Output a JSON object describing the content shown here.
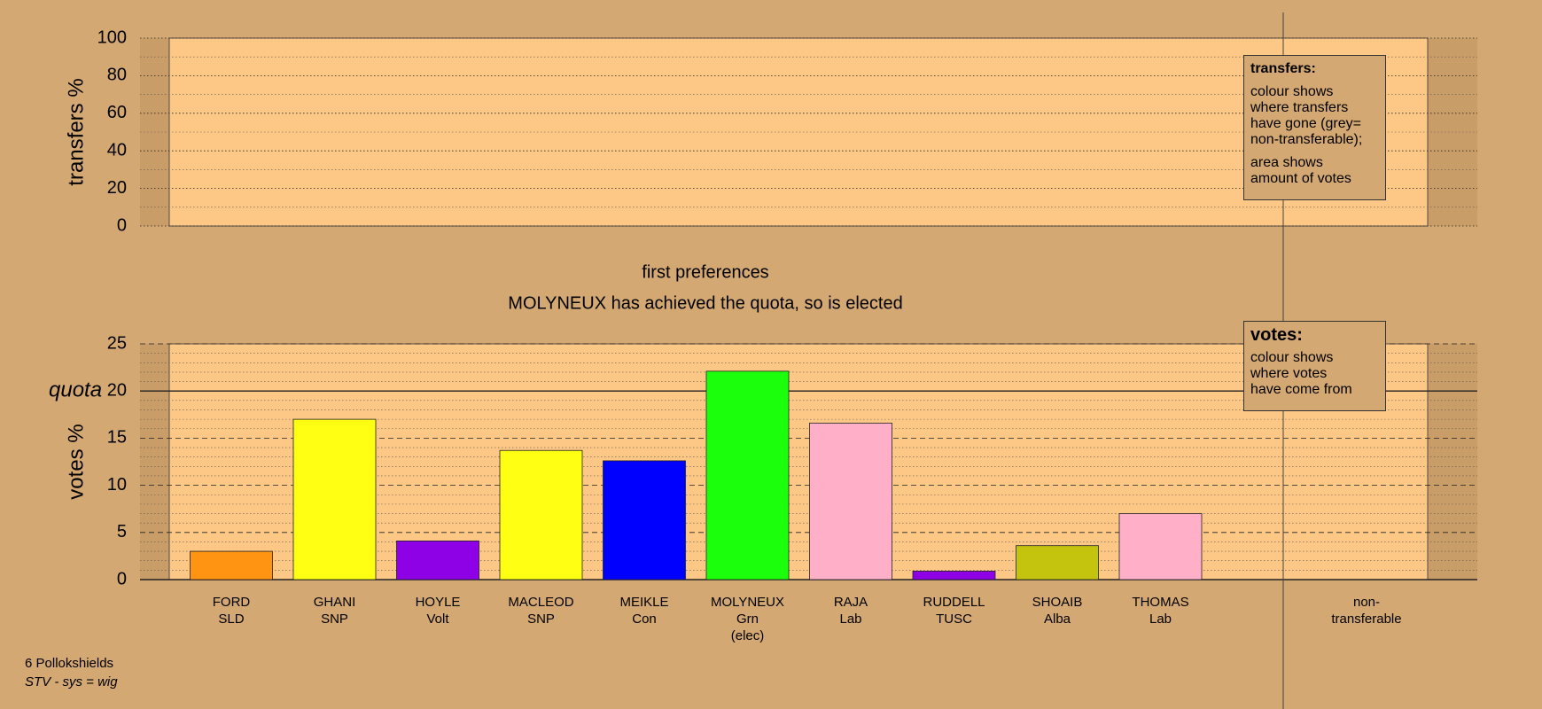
{
  "footer": {
    "ward": "6 Pollokshields",
    "system": "STV - sys = wig"
  },
  "chart_data": [
    {
      "type": "bar",
      "ylabel": "transfers %",
      "ylim": [
        0,
        100
      ],
      "yticks": [
        0,
        20,
        40,
        60,
        80,
        100
      ],
      "values": [],
      "note": {
        "title": "transfers:",
        "paragraphs": [
          "colour shows\nwhere transfers\nhave gone (grey=\nnon-transferable);",
          "area shows\namount of votes"
        ]
      }
    },
    {
      "type": "bar",
      "title": "first preferences",
      "subtitle": "MOLYNEUX has achieved the quota, so is elected",
      "ylabel": "votes %",
      "ylim": [
        0,
        25
      ],
      "yticks": [
        0,
        5,
        10,
        15,
        20,
        25
      ],
      "quota": {
        "value": 20,
        "label": "quota"
      },
      "categories": [
        "FORD\nSLD",
        "GHANI\nSNP",
        "HOYLE\nVolt",
        "MACLEOD\nSNP",
        "MEIKLE\nCon",
        "MOLYNEUX\nGrn\n(elec)",
        "RAJA\nLab",
        "RUDDELL\nTUSC",
        "SHOAIB\nAlba",
        "THOMAS\nLab",
        "non-\ntransferable"
      ],
      "values": [
        3.0,
        17.0,
        4.1,
        13.7,
        12.6,
        22.1,
        16.6,
        0.9,
        3.6,
        7.0,
        null
      ],
      "colors": [
        "#ff9412",
        "#ffff14",
        "#8e00e6",
        "#ffff14",
        "#0000ff",
        "#1cff0c",
        "#ffb0c8",
        "#8e00e6",
        "#c4c40f",
        "#ffb0c8",
        null
      ],
      "note": {
        "title": "votes:",
        "paragraphs": [
          "colour shows\nwhere votes\nhave come from"
        ]
      }
    }
  ]
}
